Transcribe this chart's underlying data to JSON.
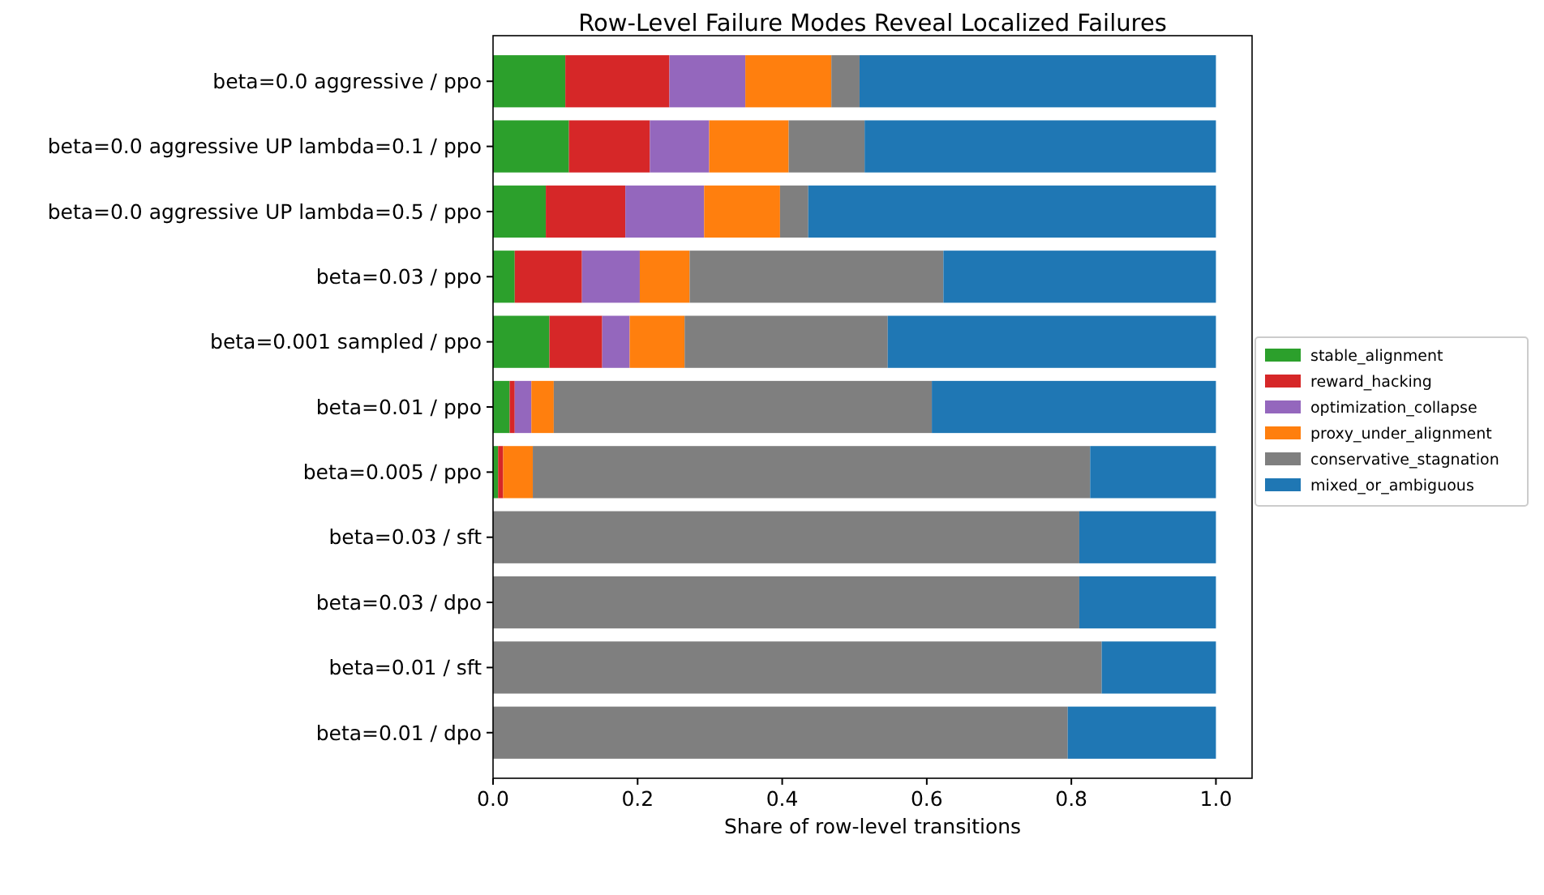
{
  "chart_data": {
    "type": "bar",
    "orientation": "horizontal",
    "stacked": true,
    "title": "Row-Level Failure Modes Reveal Localized Failures",
    "xlabel": "Share of row-level transitions",
    "categories": [
      "beta=0.0 aggressive / ppo",
      "beta=0.0 aggressive UP lambda=0.1 / ppo",
      "beta=0.0 aggressive UP lambda=0.5 / ppo",
      "beta=0.03 / ppo",
      "beta=0.001 sampled / ppo",
      "beta=0.01 / ppo",
      "beta=0.005 / ppo",
      "beta=0.03 / sft",
      "beta=0.03 / dpo",
      "beta=0.01 / sft",
      "beta=0.01 / dpo"
    ],
    "series": [
      {
        "name": "stable_alignment",
        "color": "#2ca02c",
        "values": [
          0.1,
          0.105,
          0.073,
          0.03,
          0.078,
          0.023,
          0.007,
          0,
          0,
          0,
          0
        ]
      },
      {
        "name": "reward_hacking",
        "color": "#d62728",
        "values": [
          0.144,
          0.112,
          0.11,
          0.093,
          0.073,
          0.007,
          0.007,
          0,
          0,
          0,
          0
        ]
      },
      {
        "name": "optimization_collapse",
        "color": "#9467bd",
        "values": [
          0.105,
          0.082,
          0.109,
          0.08,
          0.038,
          0.023,
          0,
          0,
          0,
          0,
          0
        ]
      },
      {
        "name": "proxy_under_alignment",
        "color": "#ff7f0e",
        "values": [
          0.119,
          0.11,
          0.105,
          0.069,
          0.076,
          0.031,
          0.041,
          0,
          0,
          0,
          0
        ]
      },
      {
        "name": "conservative_stagnation",
        "color": "#7f7f7f",
        "values": [
          0.039,
          0.105,
          0.039,
          0.351,
          0.281,
          0.523,
          0.771,
          0.811,
          0.811,
          0.842,
          0.795
        ]
      },
      {
        "name": "mixed_or_ambiguous",
        "color": "#1f77b4",
        "values": [
          0.493,
          0.486,
          0.564,
          0.377,
          0.454,
          0.393,
          0.174,
          0.189,
          0.189,
          0.158,
          0.205
        ]
      }
    ],
    "xlim": [
      0,
      1.05
    ],
    "xticks": [
      {
        "value": 0,
        "label": "0.0"
      },
      {
        "value": 0.2,
        "label": "0.2"
      },
      {
        "value": 0.4,
        "label": "0.4"
      },
      {
        "value": 0.6,
        "label": "0.6"
      },
      {
        "value": 0.8,
        "label": "0.8"
      },
      {
        "value": 1,
        "label": "1.0"
      }
    ],
    "legend": "right"
  }
}
